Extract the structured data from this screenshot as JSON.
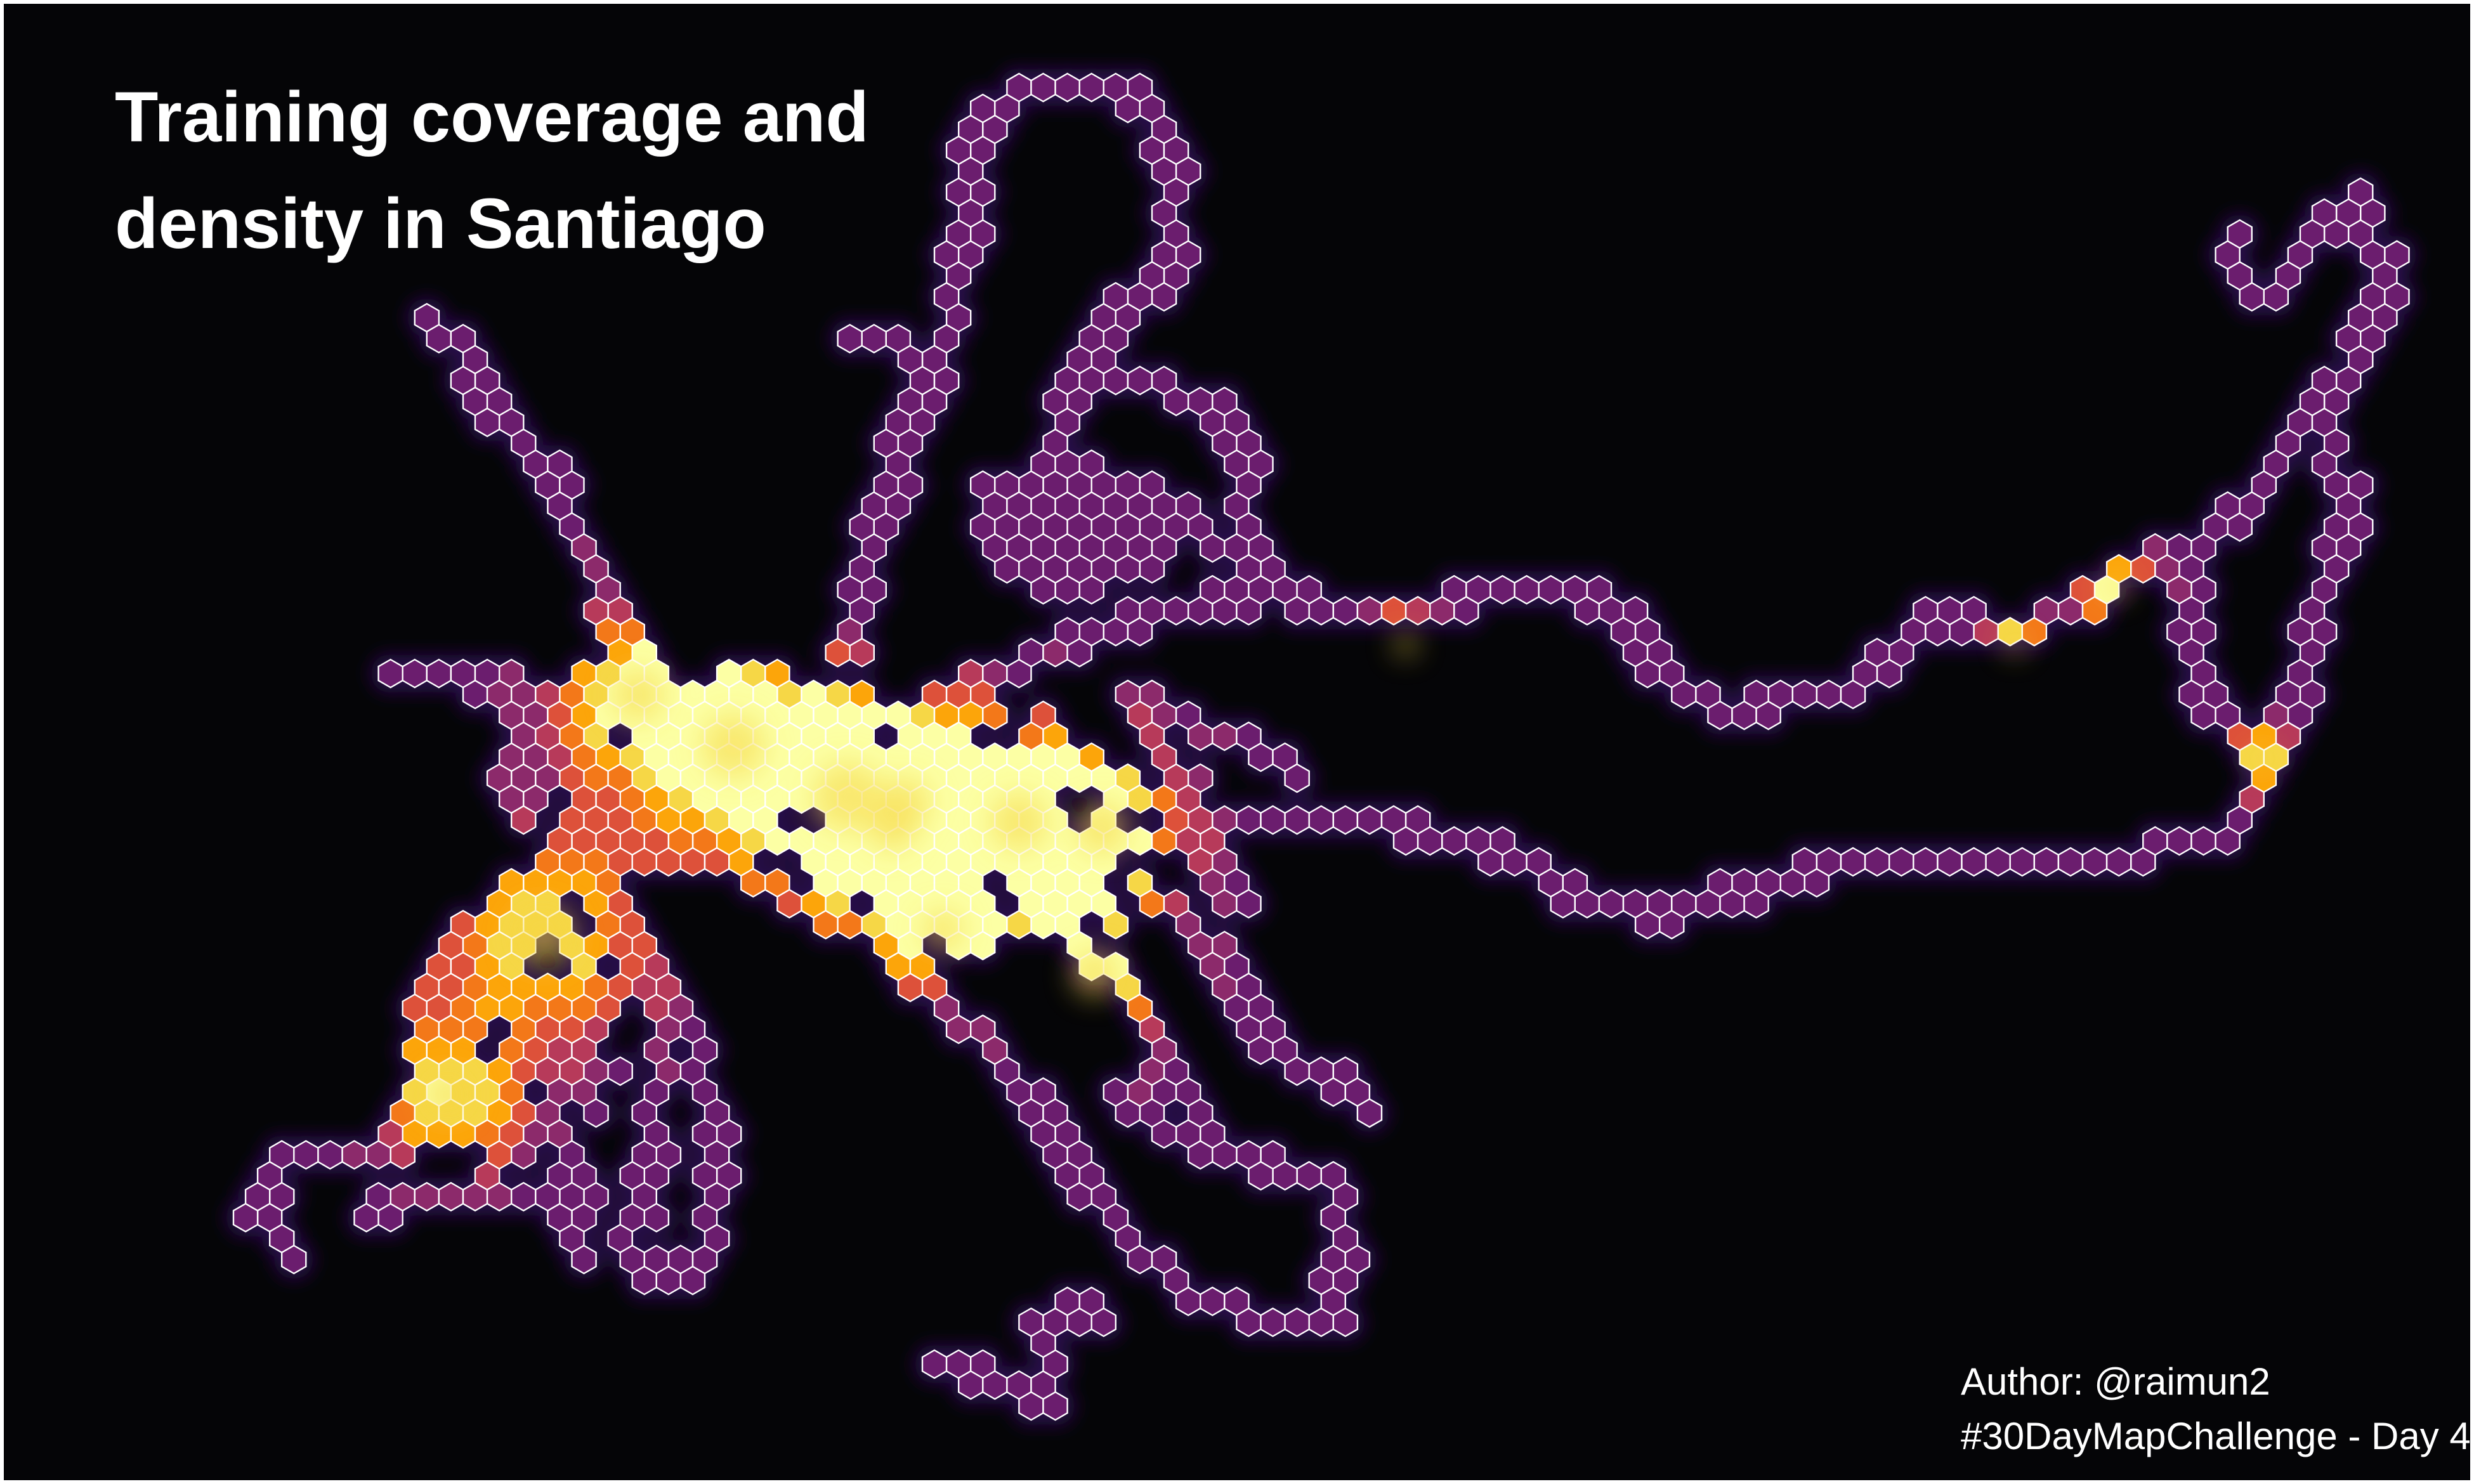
{
  "title": "Training coverage and density in Santiago",
  "author": "Author: @raimun2",
  "challenge": "#30DayMapChallenge - Day 4",
  "colors": {
    "background": "#050507",
    "hex_outline": "#ffffff",
    "glow": "#2a0c4e",
    "density_scale": [
      "#6b1d6e",
      "#8c2a6b",
      "#b73a5a",
      "#dd513a",
      "#f37819",
      "#fca50a",
      "#f6d746",
      "#fcffa4"
    ]
  },
  "legend": {
    "scale": "inferno",
    "shown": false
  }
}
